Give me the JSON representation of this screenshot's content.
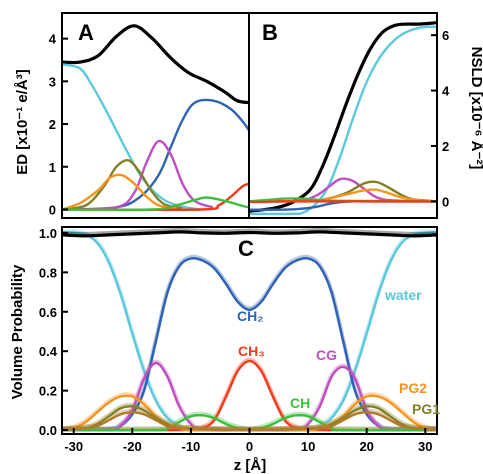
{
  "colors": {
    "total": "#000000",
    "water": "#5bc8dc",
    "CH2": "#2e62b3",
    "CH3": "#f23a1a",
    "CH": "#3cbf3c",
    "CG": "#c04ec0",
    "PG2": "#f7931e",
    "PG1": "#808024",
    "glycerol_brown": "#b07b2a"
  },
  "chart_data": [
    {
      "id": "A",
      "type": "line",
      "panel_label": "A",
      "xlim": [
        -31,
        0
      ],
      "ylim": [
        -0.2,
        4.6
      ],
      "ylabel": "ED  [x10⁻¹ e/Å³]",
      "ytick_labels": [
        "0",
        "1",
        "2",
        "3",
        "4"
      ],
      "series": [
        {
          "name": "total",
          "color_key": "total",
          "x": [
            -31,
            -28,
            -25,
            -22,
            -19,
            -16,
            -13,
            -10,
            -7,
            -4,
            -2,
            0
          ],
          "y": [
            3.45,
            3.45,
            3.6,
            4.05,
            4.3,
            4.0,
            3.55,
            3.2,
            3.0,
            2.75,
            2.55,
            2.5
          ]
        },
        {
          "name": "water",
          "color_key": "water",
          "x": [
            -31,
            -28,
            -26,
            -24,
            -22,
            -20,
            -18,
            -16,
            -14,
            -12,
            -10,
            -8
          ],
          "y": [
            3.4,
            3.3,
            2.9,
            2.4,
            1.85,
            1.3,
            0.8,
            0.45,
            0.22,
            0.1,
            0.04,
            0.0
          ]
        },
        {
          "name": "CH2",
          "color_key": "CH2",
          "x": [
            -31,
            -22,
            -18,
            -15,
            -13,
            -11,
            -9,
            -6,
            -3,
            -1,
            0
          ],
          "y": [
            0,
            0.05,
            0.3,
            0.8,
            1.45,
            2.1,
            2.5,
            2.55,
            2.35,
            2.05,
            1.85
          ]
        },
        {
          "name": "CG",
          "color_key": "CG",
          "x": [
            -31,
            -22,
            -19,
            -17,
            -15,
            -13,
            -11,
            -9,
            -6
          ],
          "y": [
            0,
            0.05,
            0.4,
            1.1,
            1.6,
            1.3,
            0.6,
            0.2,
            0.05
          ]
        },
        {
          "name": "PG1",
          "color_key": "PG1",
          "x": [
            -31,
            -27,
            -24,
            -22,
            -20,
            -18,
            -16,
            -14,
            -11
          ],
          "y": [
            0,
            0.1,
            0.55,
            1.0,
            1.15,
            0.85,
            0.4,
            0.12,
            0.02
          ]
        },
        {
          "name": "PG2",
          "color_key": "PG2",
          "x": [
            -31,
            -28,
            -25,
            -23,
            -21,
            -19,
            -17,
            -15,
            -12
          ],
          "y": [
            0,
            0.15,
            0.45,
            0.75,
            0.8,
            0.6,
            0.3,
            0.1,
            0.02
          ]
        },
        {
          "name": "CH3",
          "color_key": "CH3",
          "x": [
            -31,
            -8,
            -5,
            -3,
            -1,
            0
          ],
          "y": [
            0,
            0.0,
            0.1,
            0.3,
            0.55,
            0.6
          ]
        },
        {
          "name": "CH",
          "color_key": "CH",
          "x": [
            -31,
            -16,
            -12,
            -9,
            -7,
            -4,
            -1,
            0
          ],
          "y": [
            0,
            0.0,
            0.1,
            0.22,
            0.28,
            0.2,
            0.08,
            0.05
          ]
        }
      ]
    },
    {
      "id": "B",
      "type": "line",
      "panel_label": "B",
      "xlim": [
        0,
        31
      ],
      "ylim": [
        -0.6,
        6.8
      ],
      "ylabel": "NSLD  [x10⁻⁶ Å⁻²]",
      "ytick_labels": [
        "0",
        "2",
        "4",
        "6"
      ],
      "series": [
        {
          "name": "total",
          "color_key": "total",
          "x": [
            0,
            4,
            7,
            10,
            12,
            14,
            16,
            18,
            20,
            22,
            24,
            26,
            28,
            31
          ],
          "y": [
            -0.35,
            -0.25,
            -0.05,
            0.4,
            1.2,
            2.3,
            3.5,
            4.6,
            5.5,
            6.1,
            6.35,
            6.4,
            6.4,
            6.45
          ]
        },
        {
          "name": "water",
          "color_key": "water",
          "x": [
            0,
            7,
            9,
            11,
            13,
            15,
            17,
            19,
            21,
            23,
            25,
            27,
            29,
            31
          ],
          "y": [
            -0.45,
            -0.45,
            -0.4,
            -0.1,
            0.5,
            1.6,
            2.9,
            4.1,
            5.0,
            5.6,
            6.0,
            6.2,
            6.3,
            6.3
          ]
        },
        {
          "name": "CH2",
          "color_key": "CH2",
          "x": [
            0,
            5,
            8,
            11,
            13,
            15,
            17,
            19,
            31
          ],
          "y": [
            -0.3,
            -0.3,
            -0.28,
            -0.2,
            -0.1,
            -0.03,
            0,
            0,
            0
          ]
        },
        {
          "name": "CG",
          "color_key": "CG",
          "x": [
            0,
            8,
            11,
            13,
            15,
            17,
            19,
            21,
            24,
            31
          ],
          "y": [
            0,
            0.02,
            0.2,
            0.5,
            0.8,
            0.75,
            0.45,
            0.15,
            0.03,
            0
          ]
        },
        {
          "name": "PG1",
          "color_key": "PG1",
          "x": [
            0,
            10,
            13,
            16,
            19,
            21,
            23,
            25,
            27,
            31
          ],
          "y": [
            0,
            0.01,
            0.1,
            0.3,
            0.65,
            0.7,
            0.5,
            0.25,
            0.08,
            0
          ]
        },
        {
          "name": "PG2",
          "color_key": "PG2",
          "x": [
            0,
            10,
            13,
            16,
            19,
            21,
            23,
            25,
            28,
            31
          ],
          "y": [
            0,
            0.01,
            0.1,
            0.25,
            0.4,
            0.42,
            0.3,
            0.15,
            0.04,
            0
          ]
        },
        {
          "name": "CH",
          "color_key": "CH",
          "x": [
            0,
            3,
            6,
            9,
            12,
            15,
            31
          ],
          "y": [
            0.0,
            0.05,
            0.1,
            0.1,
            0.05,
            0.02,
            0
          ]
        },
        {
          "name": "CH3",
          "color_key": "CH3",
          "x": [
            0,
            3,
            6,
            31
          ],
          "y": [
            -0.02,
            -0.02,
            0,
            0
          ]
        }
      ]
    },
    {
      "id": "C",
      "type": "line",
      "panel_label": "C",
      "xlim": [
        -32,
        32
      ],
      "ylim": [
        -0.02,
        1.03
      ],
      "xlabel": "z [Å]",
      "ylabel": "Volume Probability",
      "xtick_labels": [
        "-30",
        "-20",
        "-10",
        "0",
        "10",
        "20",
        "30"
      ],
      "ytick_labels": [
        "0.0",
        "0.2",
        "0.4",
        "0.6",
        "0.8",
        "1.0"
      ],
      "series": [
        {
          "name": "water",
          "label": "water",
          "color_key": "water",
          "x": [
            -32,
            -30,
            -28,
            -26,
            -24,
            -22,
            -20,
            -18,
            -16,
            -14,
            -12,
            -10,
            0,
            10,
            12,
            14,
            16,
            18,
            20,
            22,
            24,
            26,
            28,
            30,
            32
          ],
          "y": [
            1.0,
            1.0,
            0.99,
            0.95,
            0.85,
            0.69,
            0.49,
            0.3,
            0.15,
            0.06,
            0.02,
            0.0,
            0.0,
            0.0,
            0.02,
            0.06,
            0.15,
            0.3,
            0.49,
            0.69,
            0.85,
            0.95,
            0.99,
            1.0,
            1.0
          ]
        },
        {
          "name": "CH2",
          "label": "CH₂",
          "color_key": "CH2",
          "x": [
            -32,
            -24,
            -22,
            -20,
            -18,
            -16,
            -14,
            -12,
            -10,
            -8,
            -6,
            -4,
            -2,
            0,
            2,
            4,
            6,
            8,
            10,
            12,
            14,
            16,
            18,
            20,
            22,
            24,
            32
          ],
          "y": [
            0,
            0,
            0.02,
            0.08,
            0.2,
            0.45,
            0.7,
            0.83,
            0.87,
            0.86,
            0.82,
            0.74,
            0.65,
            0.61,
            0.65,
            0.74,
            0.82,
            0.86,
            0.87,
            0.83,
            0.7,
            0.45,
            0.2,
            0.08,
            0.02,
            0,
            0
          ]
        },
        {
          "name": "CH3",
          "label": "CH₃",
          "color_key": "CH3",
          "x": [
            -32,
            -10,
            -8,
            -6,
            -4,
            -2,
            0,
            2,
            4,
            6,
            8,
            10,
            32
          ],
          "y": [
            0,
            0,
            0.01,
            0.05,
            0.17,
            0.3,
            0.35,
            0.3,
            0.17,
            0.05,
            0.01,
            0,
            0
          ]
        },
        {
          "name": "CG",
          "label": "CG",
          "color_key": "CG",
          "x": [
            -32,
            -24,
            -22,
            -20,
            -18,
            -16,
            -14,
            -12,
            -10,
            -8,
            0,
            8,
            10,
            12,
            14,
            16,
            18,
            20,
            22,
            24,
            32
          ],
          "y": [
            0,
            0,
            0.02,
            0.1,
            0.26,
            0.34,
            0.27,
            0.12,
            0.03,
            0,
            0,
            0,
            0.03,
            0.12,
            0.27,
            0.32,
            0.26,
            0.1,
            0.02,
            0,
            0
          ]
        },
        {
          "name": "CH",
          "label": "CH",
          "color_key": "CH",
          "x": [
            -32,
            -16,
            -14,
            -12,
            -10,
            -8,
            -6,
            -4,
            -2,
            0,
            2,
            4,
            6,
            8,
            10,
            12,
            14,
            16,
            32
          ],
          "y": [
            0,
            0,
            0.01,
            0.04,
            0.07,
            0.075,
            0.06,
            0.03,
            0.01,
            0,
            0.01,
            0.03,
            0.06,
            0.075,
            0.07,
            0.04,
            0.01,
            0,
            0
          ]
        },
        {
          "name": "PG2",
          "label": "PG2",
          "color_key": "PG2",
          "x": [
            -32,
            -30,
            -28,
            -26,
            -24,
            -22,
            -20,
            -18,
            -16,
            -14,
            -12,
            -10,
            0,
            10,
            12,
            14,
            16,
            18,
            20,
            22,
            24,
            26,
            28,
            30,
            32
          ],
          "y": [
            0,
            0.01,
            0.04,
            0.09,
            0.14,
            0.17,
            0.17,
            0.13,
            0.07,
            0.03,
            0.01,
            0,
            0,
            0,
            0.01,
            0.03,
            0.07,
            0.13,
            0.17,
            0.17,
            0.14,
            0.09,
            0.04,
            0.01,
            0
          ]
        },
        {
          "name": "PG1",
          "label": "PG1",
          "color_key": "PG1",
          "x": [
            -32,
            -28,
            -26,
            -24,
            -22,
            -20,
            -18,
            -16,
            -14,
            -12,
            0,
            12,
            14,
            16,
            18,
            20,
            22,
            24,
            26,
            28,
            32
          ],
          "y": [
            0,
            0.01,
            0.03,
            0.07,
            0.11,
            0.12,
            0.1,
            0.06,
            0.03,
            0.01,
            0,
            0.01,
            0.03,
            0.06,
            0.1,
            0.12,
            0.11,
            0.07,
            0.03,
            0.01,
            0
          ]
        },
        {
          "name": "glycerol",
          "color_key": "glycerol_brown",
          "x": [
            -32,
            -28,
            -26,
            -24,
            -22,
            -20,
            -18,
            -16,
            -14,
            -12,
            0,
            12,
            14,
            16,
            18,
            20,
            22,
            24,
            26,
            28,
            32
          ],
          "y": [
            0,
            0.01,
            0.02,
            0.05,
            0.08,
            0.09,
            0.08,
            0.05,
            0.02,
            0.01,
            0,
            0.01,
            0.02,
            0.05,
            0.08,
            0.09,
            0.08,
            0.05,
            0.02,
            0.01,
            0
          ]
        },
        {
          "name": "total",
          "color_key": "total",
          "x": [
            -32,
            -28,
            -24,
            -20,
            -16,
            -12,
            -8,
            -4,
            0,
            4,
            8,
            12,
            16,
            20,
            24,
            28,
            32
          ],
          "y": [
            0.99,
            0.985,
            0.99,
            0.995,
            1.0,
            1.005,
            1.0,
            0.998,
            1.002,
            0.998,
            1.0,
            1.005,
            1.0,
            0.995,
            0.99,
            0.985,
            0.99
          ]
        }
      ]
    }
  ]
}
